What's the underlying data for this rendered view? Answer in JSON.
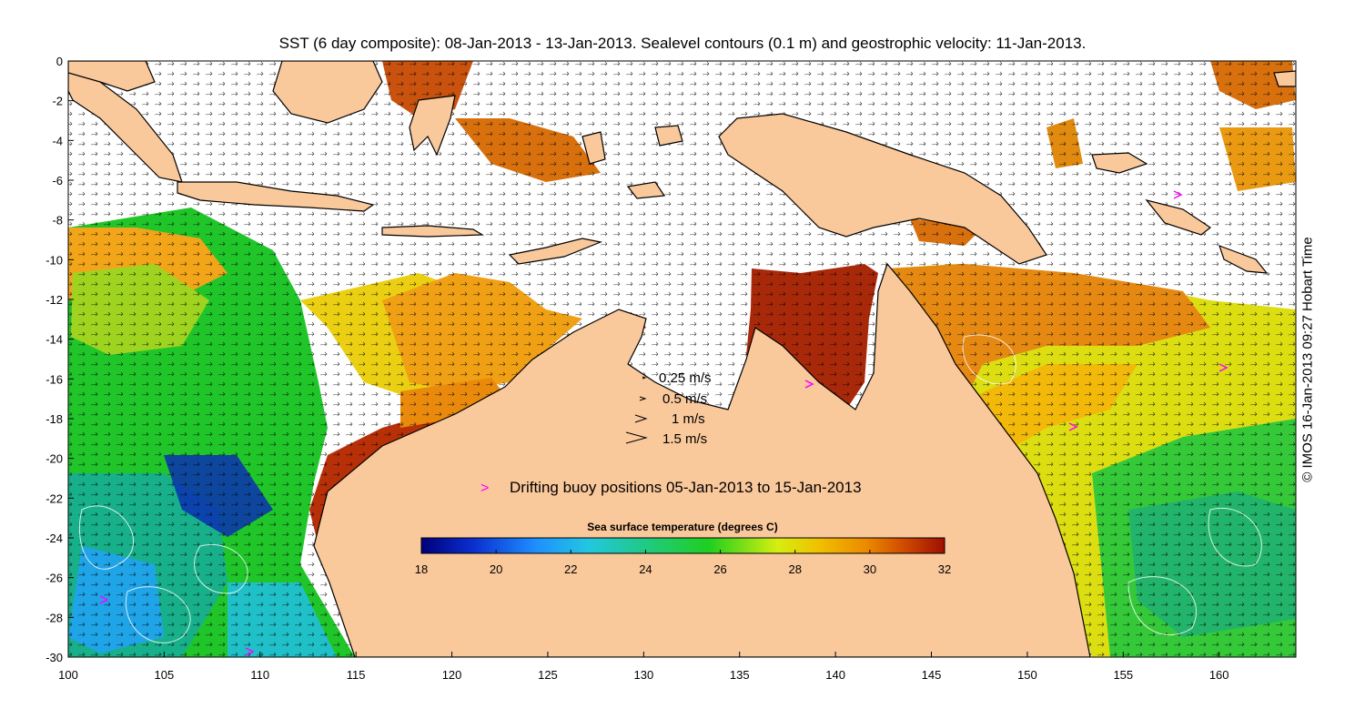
{
  "title": "SST (6 day composite): 08-Jan-2013 - 13-Jan-2013. Sealevel contours (0.1 m) and geostrophic velocity: 11-Jan-2013.",
  "credit": "© IMOS 16-Jan-2013 09:27 Hobart Time",
  "map": {
    "lon_range": [
      100,
      164
    ],
    "lat_range": [
      -30,
      0
    ],
    "lon_ticks": [
      "100",
      "105",
      "110",
      "115",
      "120",
      "125",
      "130",
      "135",
      "140",
      "145",
      "150",
      "155",
      "160"
    ],
    "lat_ticks": [
      "0",
      "-2",
      "-4",
      "-6",
      "-8",
      "-10",
      "-12",
      "-14",
      "-16",
      "-18",
      "-20",
      "-22",
      "-24",
      "-26",
      "-28",
      "-30"
    ],
    "land_color": "#f9c89b",
    "cloud_color": "#ffffff"
  },
  "velocity_legend": [
    {
      "label": "0.25 m/s"
    },
    {
      "label": "0.5 m/s"
    },
    {
      "label": "1 m/s"
    },
    {
      "label": "1.5 m/s"
    }
  ],
  "buoy_legend": {
    "symbol": ">",
    "label": "Drifting buoy positions 05-Jan-2013 to 15-Jan-2013",
    "color": "#ff00ff"
  },
  "colorbar": {
    "title": "Sea surface temperature (degrees C)",
    "min": 18,
    "max": 32,
    "ticks": [
      "18",
      "20",
      "22",
      "24",
      "26",
      "28",
      "30",
      "32"
    ]
  }
}
